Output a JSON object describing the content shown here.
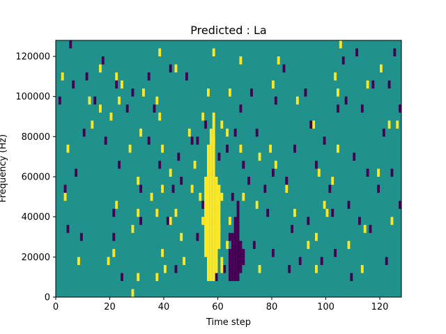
{
  "chart_data": {
    "type": "heatmap",
    "title": "Predicted : La",
    "xlabel": "Time step",
    "ylabel": "Frequency (Hz)",
    "xlim": [
      0,
      128
    ],
    "ylim": [
      0,
      128000
    ],
    "x_ticks": [
      0,
      20,
      40,
      60,
      80,
      100,
      120
    ],
    "y_ticks": [
      0,
      20000,
      40000,
      60000,
      80000,
      100000,
      120000
    ],
    "colors": {
      "background": "#21918c",
      "high": "#fde725",
      "low": "#440154"
    },
    "bin_height_hz": 4000,
    "high_cells": [
      [
        3,
        48
      ],
      [
        8,
        16
      ],
      [
        9,
        128
      ],
      [
        2,
        108
      ],
      [
        4,
        72
      ],
      [
        13,
        128
      ],
      [
        16,
        112
      ],
      [
        13,
        84
      ],
      [
        12,
        96
      ],
      [
        24,
        104
      ],
      [
        16,
        92
      ],
      [
        19,
        16
      ],
      [
        21,
        20
      ],
      [
        22,
        44
      ],
      [
        20,
        88
      ],
      [
        22,
        108
      ],
      [
        23,
        96
      ],
      [
        27,
        72
      ],
      [
        28,
        0
      ],
      [
        28,
        32
      ],
      [
        30,
        8
      ],
      [
        30,
        40
      ],
      [
        30,
        56
      ],
      [
        31,
        80
      ],
      [
        32,
        100
      ],
      [
        35,
        48
      ],
      [
        37,
        8
      ],
      [
        37,
        40
      ],
      [
        37,
        96
      ],
      [
        38,
        120
      ],
      [
        38,
        88
      ],
      [
        39,
        72
      ],
      [
        39,
        52
      ],
      [
        39,
        20
      ],
      [
        40,
        12
      ],
      [
        42,
        36
      ],
      [
        42,
        60
      ],
      [
        44,
        40
      ],
      [
        44,
        112
      ],
      [
        46,
        28
      ],
      [
        47,
        16
      ],
      [
        49,
        80
      ],
      [
        50,
        52
      ],
      [
        51,
        64
      ],
      [
        53,
        48
      ],
      [
        54,
        36
      ],
      [
        54,
        88
      ],
      [
        56,
        100
      ],
      [
        58,
        120
      ],
      [
        58,
        76
      ],
      [
        61,
        84
      ],
      [
        61,
        48
      ],
      [
        60,
        32
      ],
      [
        63,
        80
      ],
      [
        64,
        36
      ],
      [
        63,
        24
      ],
      [
        64,
        100
      ],
      [
        68,
        72
      ],
      [
        68,
        116
      ],
      [
        69,
        48
      ],
      [
        75,
        12
      ],
      [
        74,
        44
      ],
      [
        75,
        68
      ],
      [
        79,
        72
      ],
      [
        80,
        104
      ],
      [
        81,
        64
      ],
      [
        82,
        116
      ],
      [
        85,
        52
      ],
      [
        88,
        40
      ],
      [
        89,
        96
      ],
      [
        93,
        24
      ],
      [
        95,
        84
      ],
      [
        96,
        12
      ],
      [
        96,
        28
      ],
      [
        97,
        60
      ],
      [
        99,
        44
      ],
      [
        100,
        40
      ],
      [
        102,
        56
      ],
      [
        103,
        108
      ],
      [
        104,
        72
      ],
      [
        104,
        100
      ],
      [
        105,
        124
      ],
      [
        108,
        24
      ],
      [
        113,
        12
      ],
      [
        114,
        32
      ],
      [
        115,
        104
      ],
      [
        119,
        60
      ],
      [
        120,
        112
      ],
      [
        123,
        84
      ],
      [
        124,
        36
      ],
      [
        126,
        84
      ]
    ],
    "high_columns": [
      {
        "x": 55,
        "y0": 20000,
        "y1": 60000
      },
      {
        "x": 56,
        "y0": 8000,
        "y1": 76000
      },
      {
        "x": 57,
        "y0": 8000,
        "y1": 84000
      },
      {
        "x": 58,
        "y0": 8000,
        "y1": 92000
      },
      {
        "x": 59,
        "y0": 12000,
        "y1": 60000
      },
      {
        "x": 60,
        "y0": 24000,
        "y1": 56000
      },
      {
        "x": 61,
        "y0": 12000,
        "y1": 20000
      }
    ],
    "low_cells": [
      [
        5,
        124
      ],
      [
        1,
        96
      ],
      [
        6,
        104
      ],
      [
        9,
        28
      ],
      [
        4,
        32
      ],
      [
        3,
        52
      ],
      [
        7,
        60
      ],
      [
        10,
        80
      ],
      [
        11,
        108
      ],
      [
        14,
        96
      ],
      [
        17,
        116
      ],
      [
        24,
        8
      ],
      [
        22,
        104
      ],
      [
        23,
        64
      ],
      [
        21,
        40
      ],
      [
        21,
        28
      ],
      [
        18,
        76
      ],
      [
        26,
        92
      ],
      [
        28,
        100
      ],
      [
        31,
        52
      ],
      [
        31,
        36
      ],
      [
        34,
        76
      ],
      [
        34,
        108
      ],
      [
        36,
        92
      ],
      [
        38,
        64
      ],
      [
        41,
        36
      ],
      [
        42,
        112
      ],
      [
        43,
        52
      ],
      [
        44,
        12
      ],
      [
        45,
        68
      ],
      [
        46,
        56
      ],
      [
        48,
        108
      ],
      [
        50,
        76
      ],
      [
        52,
        76
      ],
      [
        52,
        28
      ],
      [
        54,
        44
      ],
      [
        55,
        84
      ],
      [
        57,
        60
      ],
      [
        58,
        36
      ],
      [
        59,
        8
      ],
      [
        60,
        68
      ],
      [
        62,
        12
      ],
      [
        63,
        72
      ],
      [
        64,
        28
      ],
      [
        66,
        20
      ],
      [
        65,
        48
      ],
      [
        66,
        80
      ],
      [
        67,
        36
      ],
      [
        68,
        92
      ],
      [
        69,
        64
      ],
      [
        71,
        56
      ],
      [
        72,
        100
      ],
      [
        73,
        24
      ],
      [
        74,
        80
      ],
      [
        77,
        52
      ],
      [
        78,
        40
      ],
      [
        80,
        20
      ],
      [
        80,
        60
      ],
      [
        81,
        96
      ],
      [
        84,
        112
      ],
      [
        85,
        56
      ],
      [
        86,
        12
      ],
      [
        87,
        32
      ],
      [
        88,
        72
      ],
      [
        90,
        16
      ],
      [
        92,
        100
      ],
      [
        93,
        36
      ],
      [
        94,
        84
      ],
      [
        96,
        64
      ],
      [
        98,
        16
      ],
      [
        99,
        76
      ],
      [
        101,
        52
      ],
      [
        102,
        40
      ],
      [
        103,
        20
      ],
      [
        104,
        92
      ],
      [
        106,
        116
      ],
      [
        107,
        96
      ],
      [
        108,
        44
      ],
      [
        109,
        8
      ],
      [
        110,
        68
      ],
      [
        111,
        120
      ],
      [
        112,
        36
      ],
      [
        113,
        92
      ],
      [
        115,
        60
      ],
      [
        116,
        32
      ],
      [
        117,
        104
      ],
      [
        119,
        52
      ],
      [
        121,
        80
      ],
      [
        122,
        16
      ],
      [
        123,
        104
      ],
      [
        124,
        60
      ],
      [
        125,
        120
      ],
      [
        127,
        44
      ],
      [
        127,
        92
      ]
    ],
    "low_columns": [
      {
        "x": 64,
        "y0": 8000,
        "y1": 24000
      },
      {
        "x": 65,
        "y0": 8000,
        "y1": 32000
      },
      {
        "x": 66,
        "y0": 8000,
        "y1": 40000
      },
      {
        "x": 67,
        "y0": 8000,
        "y1": 48000
      },
      {
        "x": 68,
        "y0": 12000,
        "y1": 28000
      },
      {
        "x": 69,
        "y0": 16000,
        "y1": 24000
      }
    ],
    "grid": false,
    "legend": "none"
  }
}
